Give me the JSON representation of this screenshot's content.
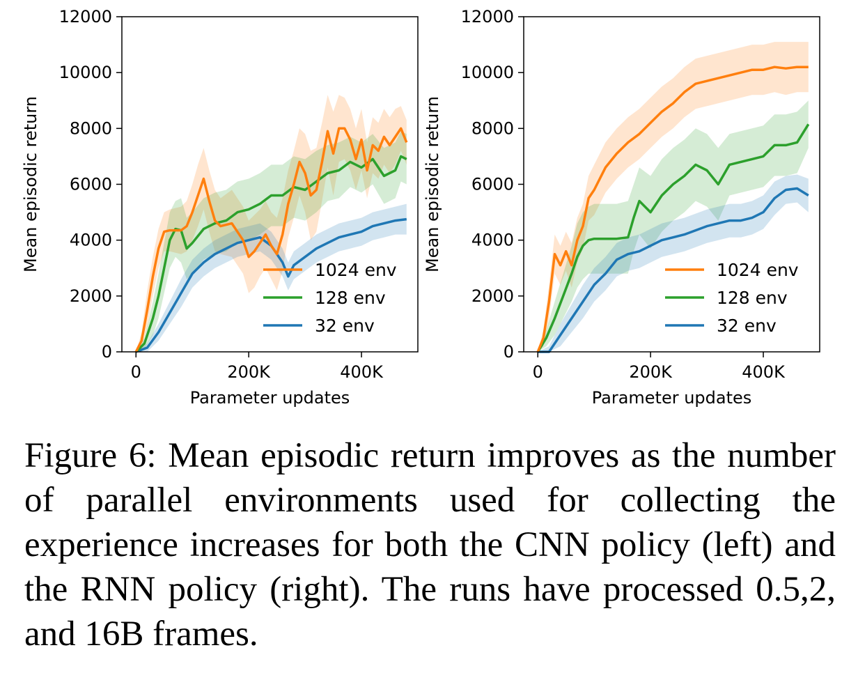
{
  "chart_data": [
    {
      "type": "line",
      "title": "",
      "xlabel": "Parameter updates",
      "ylabel": "Mean episodic return",
      "xlim": [
        -25000,
        500000
      ],
      "ylim": [
        0,
        12000
      ],
      "xticks": [
        0,
        200000,
        400000
      ],
      "xtick_labels": [
        "0",
        "200K",
        "400K"
      ],
      "yticks": [
        0,
        2000,
        4000,
        6000,
        8000,
        10000,
        12000
      ],
      "ytick_labels": [
        "0",
        "2000",
        "4000",
        "6000",
        "8000",
        "10000",
        "12000"
      ],
      "grid": false,
      "legend": "lower-right",
      "series": [
        {
          "name": "1024 env",
          "color": "#ff7f0e",
          "x": [
            0,
            10000,
            20000,
            30000,
            40000,
            50000,
            60000,
            80000,
            90000,
            100000,
            110000,
            120000,
            130000,
            140000,
            150000,
            170000,
            190000,
            200000,
            210000,
            220000,
            230000,
            240000,
            250000,
            260000,
            270000,
            280000,
            290000,
            300000,
            310000,
            320000,
            330000,
            340000,
            350000,
            360000,
            370000,
            380000,
            390000,
            400000,
            410000,
            420000,
            430000,
            440000,
            450000,
            460000,
            470000,
            480000
          ],
          "y": [
            0,
            400,
            1500,
            2700,
            3700,
            4300,
            4350,
            4350,
            4500,
            5000,
            5600,
            6200,
            5400,
            4700,
            4500,
            4600,
            4000,
            3400,
            3600,
            3900,
            4200,
            3800,
            3500,
            4200,
            5300,
            6000,
            6800,
            6400,
            5600,
            5800,
            6800,
            7900,
            7100,
            8000,
            8000,
            7600,
            6900,
            7600,
            6500,
            7400,
            7200,
            7700,
            7400,
            7700,
            8000,
            7500
          ],
          "upper": [
            0,
            700,
            2200,
            3400,
            4400,
            5000,
            5100,
            5200,
            5400,
            6000,
            6700,
            7300,
            6500,
            5800,
            5500,
            5800,
            5200,
            4700,
            4900,
            5100,
            5400,
            5000,
            4800,
            5500,
            6500,
            7200,
            8000,
            7800,
            7200,
            7300,
            8200,
            9200,
            8600,
            9200,
            9100,
            8700,
            8000,
            8700,
            7500,
            8400,
            8200,
            8700,
            8400,
            8700,
            8800,
            8300
          ],
          "lower": [
            0,
            100,
            900,
            2000,
            3000,
            3600,
            3600,
            3500,
            3600,
            4000,
            4500,
            5100,
            4300,
            3600,
            3500,
            3400,
            2800,
            2100,
            2300,
            2700,
            3000,
            2600,
            2200,
            2900,
            4100,
            4800,
            5600,
            5000,
            4000,
            4300,
            5400,
            6600,
            5600,
            6800,
            6900,
            6500,
            5800,
            6500,
            5500,
            6400,
            6200,
            6700,
            6400,
            6700,
            7200,
            6700
          ]
        },
        {
          "name": "128 env",
          "color": "#2ca02c",
          "x": [
            0,
            15000,
            30000,
            40000,
            50000,
            60000,
            70000,
            80000,
            90000,
            100000,
            120000,
            140000,
            160000,
            180000,
            200000,
            220000,
            240000,
            260000,
            280000,
            300000,
            320000,
            340000,
            360000,
            380000,
            400000,
            420000,
            440000,
            460000,
            470000,
            480000
          ],
          "y": [
            0,
            300,
            1200,
            2000,
            3000,
            4000,
            4400,
            4350,
            3700,
            3900,
            4400,
            4600,
            4700,
            5000,
            5100,
            5300,
            5600,
            5600,
            5900,
            5800,
            6100,
            6400,
            6500,
            6800,
            6600,
            6900,
            6300,
            6500,
            7000,
            6900
          ],
          "upper": [
            0,
            500,
            1800,
            2800,
            3900,
            5000,
            5400,
            5500,
            4800,
            5000,
            5500,
            5700,
            5800,
            6100,
            6200,
            6400,
            6700,
            6700,
            7000,
            6900,
            7200,
            7400,
            7500,
            7700,
            7500,
            7800,
            7300,
            7500,
            7900,
            7800
          ],
          "lower": [
            0,
            100,
            600,
            1200,
            2100,
            3000,
            3400,
            3200,
            2600,
            2800,
            3300,
            3500,
            3600,
            3900,
            4000,
            4200,
            4500,
            4500,
            4800,
            4700,
            5000,
            5400,
            5500,
            5900,
            5700,
            6000,
            5300,
            5500,
            6100,
            6000
          ]
        },
        {
          "name": "32 env",
          "color": "#1f77b4",
          "x": [
            0,
            20000,
            40000,
            60000,
            80000,
            100000,
            120000,
            140000,
            160000,
            180000,
            200000,
            220000,
            240000,
            260000,
            270000,
            280000,
            300000,
            320000,
            340000,
            360000,
            380000,
            400000,
            420000,
            440000,
            460000,
            480000
          ],
          "y": [
            0,
            150,
            700,
            1400,
            2100,
            2800,
            3200,
            3500,
            3700,
            3900,
            4000,
            4100,
            3800,
            3200,
            2700,
            3100,
            3400,
            3700,
            3900,
            4100,
            4200,
            4300,
            4500,
            4600,
            4700,
            4750
          ],
          "upper": [
            0,
            300,
            1000,
            1800,
            2600,
            3300,
            3700,
            4000,
            4200,
            4400,
            4500,
            4600,
            4300,
            3700,
            3200,
            3600,
            3900,
            4200,
            4400,
            4600,
            4700,
            4800,
            5000,
            5100,
            5200,
            5300
          ],
          "lower": [
            0,
            0,
            400,
            1000,
            1600,
            2300,
            2700,
            3000,
            3200,
            3400,
            3500,
            3600,
            3300,
            2700,
            2200,
            2600,
            2900,
            3200,
            3400,
            3600,
            3700,
            3800,
            4000,
            4100,
            4200,
            4200
          ]
        }
      ]
    },
    {
      "type": "line",
      "title": "",
      "xlabel": "Parameter updates",
      "ylabel": "Mean episodic return",
      "xlim": [
        -25000,
        500000
      ],
      "ylim": [
        0,
        12000
      ],
      "xticks": [
        0,
        200000,
        400000
      ],
      "xtick_labels": [
        "0",
        "200K",
        "400K"
      ],
      "yticks": [
        0,
        2000,
        4000,
        6000,
        8000,
        10000,
        12000
      ],
      "ytick_labels": [
        "0",
        "2000",
        "4000",
        "6000",
        "8000",
        "10000",
        "12000"
      ],
      "grid": false,
      "legend": "lower-right",
      "series": [
        {
          "name": "1024 env",
          "color": "#ff7f0e",
          "x": [
            0,
            10000,
            20000,
            30000,
            40000,
            50000,
            60000,
            70000,
            80000,
            90000,
            100000,
            120000,
            140000,
            160000,
            180000,
            200000,
            220000,
            240000,
            260000,
            280000,
            300000,
            320000,
            340000,
            360000,
            380000,
            400000,
            420000,
            440000,
            460000,
            480000
          ],
          "y": [
            0,
            500,
            1800,
            3500,
            3100,
            3600,
            3100,
            4000,
            4500,
            5500,
            5800,
            6600,
            7100,
            7500,
            7800,
            8200,
            8600,
            8900,
            9300,
            9600,
            9700,
            9800,
            9900,
            10000,
            10100,
            10100,
            10200,
            10150,
            10200,
            10200
          ],
          "upper": [
            0,
            800,
            2400,
            4200,
            3800,
            4300,
            3900,
            4800,
            5300,
            6300,
            6700,
            7500,
            8000,
            8400,
            8700,
            9100,
            9500,
            9800,
            10200,
            10500,
            10600,
            10700,
            10800,
            10900,
            11000,
            11000,
            11100,
            11100,
            11100,
            11100
          ],
          "lower": [
            0,
            200,
            1200,
            2800,
            2400,
            2900,
            2300,
            3200,
            3700,
            4700,
            4900,
            5700,
            6200,
            6600,
            6900,
            7300,
            7700,
            8000,
            8400,
            8700,
            8800,
            8900,
            9000,
            9100,
            9200,
            9200,
            9300,
            9200,
            9300,
            9300
          ]
        },
        {
          "name": "128 env",
          "color": "#2ca02c",
          "x": [
            0,
            15000,
            30000,
            45000,
            60000,
            70000,
            80000,
            90000,
            100000,
            120000,
            140000,
            160000,
            170000,
            180000,
            200000,
            220000,
            240000,
            260000,
            280000,
            300000,
            320000,
            340000,
            360000,
            380000,
            400000,
            420000,
            440000,
            460000,
            480000
          ],
          "y": [
            0,
            500,
            1200,
            2000,
            2800,
            3400,
            3800,
            4000,
            4050,
            4050,
            4050,
            4100,
            4800,
            5400,
            5000,
            5600,
            6000,
            6300,
            6700,
            6500,
            6000,
            6700,
            6800,
            6900,
            7000,
            7400,
            7400,
            7500,
            8150
          ],
          "upper": [
            0,
            800,
            1800,
            2800,
            3800,
            4600,
            5000,
            5200,
            5300,
            5300,
            5300,
            5400,
            6000,
            6600,
            6300,
            6900,
            7300,
            7600,
            8000,
            7800,
            7300,
            7800,
            7900,
            8000,
            8100,
            8500,
            8500,
            8600,
            9000
          ],
          "lower": [
            0,
            200,
            600,
            1200,
            1800,
            2300,
            2600,
            2800,
            2800,
            2800,
            2800,
            2800,
            3600,
            4200,
            3700,
            4300,
            4700,
            5000,
            5400,
            5200,
            4700,
            5600,
            5700,
            5800,
            5900,
            6300,
            6300,
            6400,
            7300
          ]
        },
        {
          "name": "32 env",
          "color": "#1f77b4",
          "x": [
            0,
            20000,
            40000,
            60000,
            80000,
            100000,
            120000,
            140000,
            160000,
            180000,
            200000,
            220000,
            240000,
            260000,
            280000,
            300000,
            320000,
            340000,
            360000,
            380000,
            400000,
            420000,
            440000,
            460000,
            480000
          ],
          "y": [
            0,
            0,
            600,
            1200,
            1800,
            2400,
            2800,
            3300,
            3500,
            3600,
            3800,
            4000,
            4100,
            4200,
            4350,
            4500,
            4600,
            4700,
            4700,
            4800,
            5000,
            5500,
            5800,
            5850,
            5600
          ],
          "upper": [
            0,
            200,
            1000,
            1700,
            2400,
            3000,
            3400,
            3900,
            4100,
            4200,
            4400,
            4600,
            4700,
            4800,
            4950,
            5100,
            5200,
            5300,
            5300,
            5400,
            5600,
            6100,
            6300,
            6350,
            6200
          ],
          "lower": [
            0,
            0,
            200,
            700,
            1200,
            1800,
            2200,
            2700,
            2900,
            3000,
            3200,
            3400,
            3500,
            3600,
            3750,
            3900,
            4000,
            4100,
            4100,
            4200,
            4400,
            4900,
            5300,
            5350,
            5000
          ]
        }
      ]
    }
  ],
  "caption": "Figure 6: Mean episodic return improves as the number of parallel environments used for collecting the experience increases for both the CNN policy (left) and the RNN policy (right). The runs have processed 0.5,2, and 16B frames."
}
